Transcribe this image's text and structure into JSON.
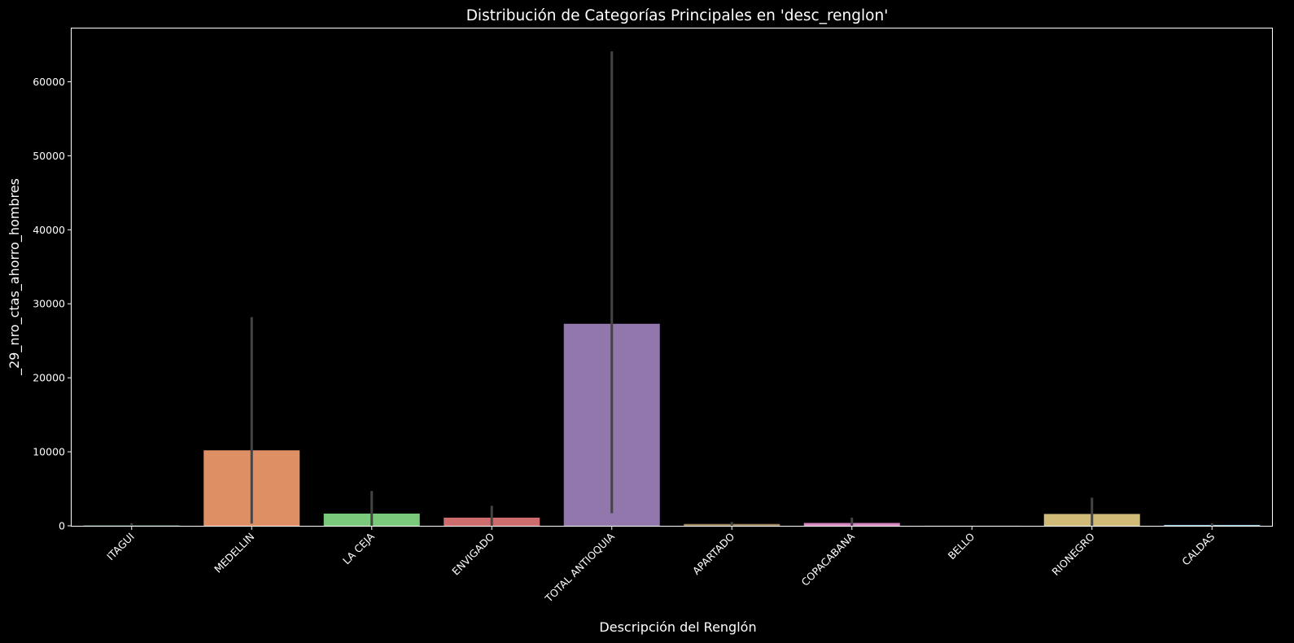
{
  "chart_data": {
    "type": "bar",
    "title": "Distribución de Categorías Principales en 'desc_renglon'",
    "xlabel": "Descripción del Renglón",
    "ylabel": "_29_nro_ctas_ahorro_hombres",
    "categories": [
      "ITAGUI",
      "MEDELLIN",
      "LA CEJA",
      "ENVIGADO",
      "TOTAL ANTIOQUIA",
      "APARTADO",
      "COPACABANA",
      "BELLO",
      "RIONEGRO",
      "CALDAS"
    ],
    "values": [
      40,
      10200,
      1650,
      1100,
      27300,
      250,
      380,
      10,
      1600,
      120
    ],
    "error_low": [
      0,
      300,
      0,
      0,
      1700,
      0,
      0,
      0,
      0,
      0
    ],
    "error_high": [
      350,
      28200,
      4700,
      2700,
      64100,
      500,
      1100,
      20,
      3800,
      350
    ],
    "colors": [
      "#66c2a5",
      "#de8f63",
      "#7bc97b",
      "#cd6c6c",
      "#9277ad",
      "#9e8661",
      "#d888c0",
      "#8c8c8c",
      "#d0bb78",
      "#92c5de"
    ],
    "error_color": "#444444",
    "ylim": [
      0,
      67200
    ],
    "yticks": [
      0,
      10000,
      20000,
      30000,
      40000,
      50000,
      60000
    ],
    "grid": false,
    "legend": "none"
  }
}
